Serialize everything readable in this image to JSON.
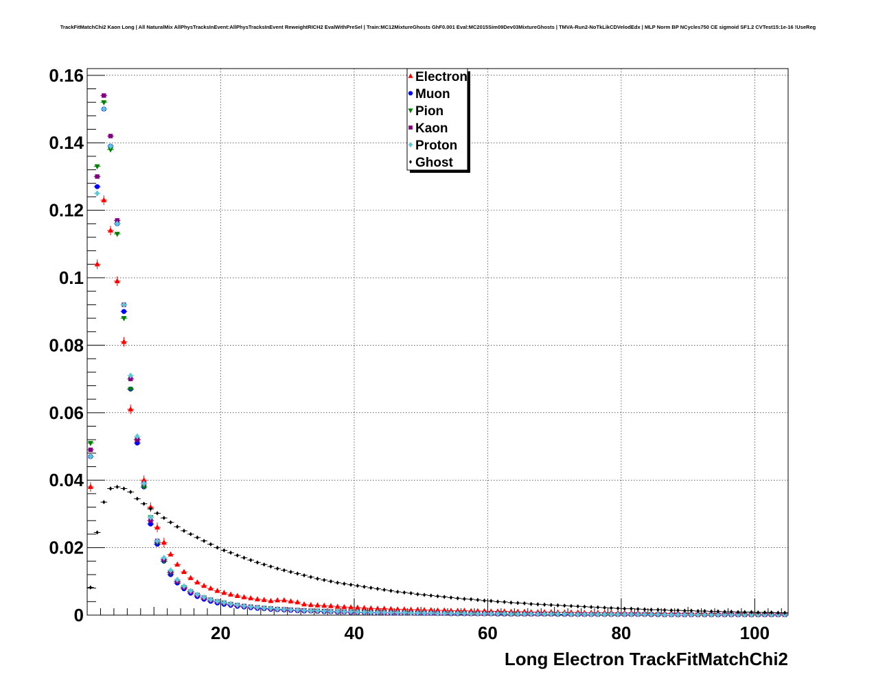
{
  "title": "TrackFitMatchChi2 Kaon Long | All NaturalMix AllPhysTracksInEvent:AllPhysTracksInEvent ReweightRICH2 EvalWithPreSel | Train:MC12MixtureGhosts GhF0.001 Eval:MC2015Sim09Dev03MixtureGhosts | TMVA-Run2-NoTkLikCDVelodEdx | MLP Norm BP NCycles750 CE sigmoid SF1.2 CVTest15:1e-16 !UseReg",
  "chart_data": {
    "type": "scatter",
    "title": "TrackFitMatchChi2 Kaon Long | All NaturalMix AllPhysTracksInEvent:AllPhysTracksInEvent ReweightRICH2 EvalWithPreSel | Train:MC12MixtureGhosts GhF0.001 Eval:MC2015Sim09Dev03MixtureGhosts | TMVA-Run2-NoTkLikCDVelodEdx | MLP Norm BP NCycles750 CE sigmoid SF1.2 CVTest15:1e-16 !UseReg",
    "xlabel": "Long Electron TrackFitMatchChi2",
    "ylabel": "",
    "xlim": [
      0,
      105
    ],
    "ylim": [
      0,
      0.162
    ],
    "x_ticks": [
      20,
      40,
      60,
      80,
      100
    ],
    "y_ticks": [
      0,
      0.02,
      0.04,
      0.06,
      0.08,
      0.1,
      0.12,
      0.14,
      0.16
    ],
    "y_tick_labels": [
      "0",
      "0.02",
      "0.04",
      "0.06",
      "0.08",
      "0.1",
      "0.12",
      "0.14",
      "0.16"
    ],
    "grid": true,
    "legend_position": "top-center",
    "bin_width": 1,
    "bin_centers": [
      0.5,
      1.5,
      2.5,
      3.5,
      4.5,
      5.5,
      6.5,
      7.5,
      8.5,
      9.5,
      10.5,
      11.5,
      12.5,
      13.5,
      14.5,
      15.5,
      16.5,
      17.5,
      18.5,
      19.5,
      20.5,
      21.5,
      22.5,
      23.5,
      24.5,
      25.5,
      26.5,
      27.5,
      28.5,
      29.5,
      30.5,
      31.5,
      32.5,
      33.5,
      34.5,
      35.5,
      36.5,
      37.5,
      38.5,
      39.5,
      40.5,
      41.5,
      42.5,
      43.5,
      44.5,
      45.5,
      46.5,
      47.5,
      48.5,
      49.5,
      50.5,
      51.5,
      52.5,
      53.5,
      54.5,
      55.5,
      56.5,
      57.5,
      58.5,
      59.5,
      60.5,
      61.5,
      62.5,
      63.5,
      64.5,
      65.5,
      66.5,
      67.5,
      68.5,
      69.5,
      70.5,
      71.5,
      72.5,
      73.5,
      74.5,
      75.5,
      76.5,
      77.5,
      78.5,
      79.5,
      80.5,
      81.5,
      82.5,
      83.5,
      84.5,
      85.5,
      86.5,
      87.5,
      88.5,
      89.5,
      90.5,
      91.5,
      92.5,
      93.5,
      94.5,
      95.5,
      96.5,
      97.5,
      98.5,
      99.5,
      100.5,
      101.5,
      102.5,
      103.5,
      104.5
    ],
    "series": [
      {
        "name": "Electron",
        "color": "#ff0000",
        "marker": "triangle-up",
        "values": [
          0.038,
          0.104,
          0.123,
          0.114,
          0.099,
          0.081,
          0.061,
          0.052,
          0.04,
          0.032,
          0.026,
          0.0215,
          0.018,
          0.015,
          0.0128,
          0.011,
          0.0097,
          0.0087,
          0.0079,
          0.0072,
          0.0066,
          0.0061,
          0.0057,
          0.0053,
          0.005,
          0.0047,
          0.0045,
          0.0042,
          0.0044,
          0.0044,
          0.0041,
          0.0038,
          0.0032,
          0.003,
          0.0029,
          0.0028,
          0.0027,
          0.0025,
          0.0024,
          0.0023,
          0.0022,
          0.0021,
          0.002,
          0.0019,
          0.0019,
          0.0018,
          0.0017,
          0.0017,
          0.0016,
          0.0016,
          0.0015,
          0.0015,
          0.0014,
          0.0014,
          0.0013,
          0.0013,
          0.0013,
          0.0012,
          0.0012,
          0.0012,
          0.0011,
          0.0011,
          0.0011,
          0.001,
          0.001,
          0.001,
          0.0009,
          0.0009,
          0.0009,
          0.0009,
          0.0008,
          0.0008,
          0.0008,
          0.0008,
          0.0007,
          0.0007,
          0.0007,
          0.0007,
          0.0007,
          0.0006,
          0.0006,
          0.0006,
          0.0006,
          0.0006,
          0.0005,
          0.0005,
          0.0005,
          0.0005,
          0.0005,
          0.0005,
          0.0004,
          0.0004,
          0.0004,
          0.0004,
          0.0004,
          0.0004,
          0.0004,
          0.0003,
          0.0003,
          0.0003,
          0.0003,
          0.0003,
          0.0003,
          0.0003,
          0.0003
        ]
      },
      {
        "name": "Muon",
        "color": "#0000ff",
        "marker": "circle",
        "values": [
          0.047,
          0.127,
          0.15,
          0.139,
          0.116,
          0.09,
          0.067,
          0.051,
          0.038,
          0.027,
          0.021,
          0.016,
          0.012,
          0.0095,
          0.0078,
          0.0065,
          0.0055,
          0.0047,
          0.0041,
          0.0036,
          0.0032,
          0.0029,
          0.0026,
          0.0024,
          0.0022,
          0.002,
          0.0019,
          0.0017,
          0.0016,
          0.0015,
          0.0014,
          0.0013,
          0.0012,
          0.0012,
          0.0011,
          0.001,
          0.001,
          0.0009,
          0.0009,
          0.0008,
          0.0008,
          0.0008,
          0.0007,
          0.0007,
          0.0007,
          0.0006,
          0.0006,
          0.0006,
          0.0006,
          0.0005,
          0.0005,
          0.0005,
          0.0005,
          0.0005,
          0.0004,
          0.0004,
          0.0004,
          0.0004,
          0.0004,
          0.0004,
          0.0004,
          0.0003,
          0.0003,
          0.0003,
          0.0003,
          0.0003,
          0.0003,
          0.0003,
          0.0003,
          0.0003,
          0.0002,
          0.0002,
          0.0002,
          0.0002,
          0.0002,
          0.0002,
          0.0002,
          0.0002,
          0.0002,
          0.0002,
          0.0002,
          0.0002,
          0.0002,
          0.0002,
          0.0001,
          0.0001,
          0.0001,
          0.0001,
          0.0001,
          0.0001,
          0.0001,
          0.0001,
          0.0001,
          0.0001,
          0.0001,
          0.0001,
          0.0001,
          0.0001,
          0.0001,
          0.0001,
          0.0001,
          0.0001,
          0.0001,
          0.0001,
          0.0001
        ]
      },
      {
        "name": "Pion",
        "color": "#008000",
        "marker": "triangle-down",
        "values": [
          0.051,
          0.133,
          0.152,
          0.138,
          0.113,
          0.088,
          0.067,
          0.052,
          0.038,
          0.029,
          0.0215,
          0.016,
          0.0125,
          0.01,
          0.0083,
          0.007,
          0.006,
          0.0052,
          0.0046,
          0.0041,
          0.0037,
          0.0033,
          0.003,
          0.0027,
          0.0025,
          0.0023,
          0.0021,
          0.002,
          0.0018,
          0.0017,
          0.0016,
          0.0015,
          0.0014,
          0.0013,
          0.0013,
          0.0012,
          0.0011,
          0.0011,
          0.001,
          0.001,
          0.0009,
          0.0009,
          0.0008,
          0.0008,
          0.0008,
          0.0007,
          0.0007,
          0.0007,
          0.0006,
          0.0006,
          0.0006,
          0.0006,
          0.0005,
          0.0005,
          0.0005,
          0.0005,
          0.0005,
          0.0004,
          0.0004,
          0.0004,
          0.0004,
          0.0004,
          0.0004,
          0.0003,
          0.0003,
          0.0003,
          0.0003,
          0.0003,
          0.0003,
          0.0003,
          0.0003,
          0.0003,
          0.0002,
          0.0002,
          0.0002,
          0.0002,
          0.0002,
          0.0002,
          0.0002,
          0.0002,
          0.0002,
          0.0002,
          0.0002,
          0.0002,
          0.0002,
          0.0002,
          0.0001,
          0.0001,
          0.0001,
          0.0001,
          0.0001,
          0.0001,
          0.0001,
          0.0001,
          0.0001,
          0.0001,
          0.0001,
          0.0001,
          0.0001,
          0.0001,
          0.0001,
          0.0001,
          0.0001,
          0.0001,
          0.0001
        ]
      },
      {
        "name": "Kaon",
        "color": "#800080",
        "marker": "square",
        "values": [
          0.049,
          0.13,
          0.154,
          0.142,
          0.117,
          0.092,
          0.07,
          0.052,
          0.039,
          0.028,
          0.022,
          0.0165,
          0.0128,
          0.01,
          0.0082,
          0.0069,
          0.0059,
          0.0051,
          0.0045,
          0.004,
          0.0036,
          0.0032,
          0.0029,
          0.0027,
          0.0025,
          0.0023,
          0.0021,
          0.0019,
          0.0018,
          0.0017,
          0.0016,
          0.0015,
          0.0014,
          0.0013,
          0.0012,
          0.0012,
          0.0011,
          0.001,
          0.001,
          0.0009,
          0.0009,
          0.0009,
          0.0008,
          0.0008,
          0.0007,
          0.0007,
          0.0007,
          0.0007,
          0.0006,
          0.0006,
          0.0006,
          0.0006,
          0.0005,
          0.0005,
          0.0005,
          0.0005,
          0.0005,
          0.0004,
          0.0004,
          0.0004,
          0.0004,
          0.0004,
          0.0004,
          0.0003,
          0.0003,
          0.0003,
          0.0003,
          0.0003,
          0.0003,
          0.0003,
          0.0003,
          0.0003,
          0.0002,
          0.0002,
          0.0002,
          0.0002,
          0.0002,
          0.0002,
          0.0002,
          0.0002,
          0.0002,
          0.0002,
          0.0002,
          0.0002,
          0.0002,
          0.0002,
          0.0001,
          0.0001,
          0.0001,
          0.0001,
          0.0001,
          0.0001,
          0.0001,
          0.0001,
          0.0001,
          0.0001,
          0.0001,
          0.0001,
          0.0001,
          0.0001,
          0.0001,
          0.0001,
          0.0001,
          0.0001,
          0.0001
        ]
      },
      {
        "name": "Proton",
        "color": "#5fc8d8",
        "marker": "diamond",
        "values": [
          0.047,
          0.125,
          0.15,
          0.139,
          0.116,
          0.092,
          0.071,
          0.053,
          0.039,
          0.029,
          0.022,
          0.017,
          0.0133,
          0.0105,
          0.0086,
          0.0072,
          0.0061,
          0.0053,
          0.0046,
          0.0041,
          0.0037,
          0.0033,
          0.003,
          0.0027,
          0.0025,
          0.0023,
          0.0021,
          0.002,
          0.0018,
          0.0017,
          0.0016,
          0.0015,
          0.0014,
          0.0013,
          0.0013,
          0.0012,
          0.0011,
          0.0011,
          0.001,
          0.001,
          0.0009,
          0.0009,
          0.0008,
          0.0008,
          0.0008,
          0.0007,
          0.0007,
          0.0007,
          0.0006,
          0.0006,
          0.0006,
          0.0006,
          0.0005,
          0.0005,
          0.0005,
          0.0005,
          0.0005,
          0.0004,
          0.0004,
          0.0004,
          0.0004,
          0.0004,
          0.0004,
          0.0003,
          0.0003,
          0.0003,
          0.0003,
          0.0003,
          0.0003,
          0.0003,
          0.0003,
          0.0003,
          0.0002,
          0.0002,
          0.0002,
          0.0002,
          0.0002,
          0.0002,
          0.0002,
          0.0002,
          0.0002,
          0.0002,
          0.0002,
          0.0002,
          0.0002,
          0.0002,
          0.0001,
          0.0001,
          0.0001,
          0.0001,
          0.0001,
          0.0001,
          0.0001,
          0.0001,
          0.0001,
          0.0001,
          0.0001,
          0.0001,
          0.0001,
          0.0001,
          0.0001,
          0.0001,
          0.0001,
          0.0001,
          0.0001
        ]
      },
      {
        "name": "Ghost",
        "color": "#000000",
        "marker": "diamond-small",
        "values": [
          0.0082,
          0.0245,
          0.0335,
          0.0375,
          0.038,
          0.0375,
          0.0365,
          0.0345,
          0.033,
          0.0315,
          0.0302,
          0.0288,
          0.0275,
          0.0262,
          0.025,
          0.024,
          0.023,
          0.022,
          0.021,
          0.02,
          0.0192,
          0.0185,
          0.0177,
          0.017,
          0.0163,
          0.0156,
          0.015,
          0.0144,
          0.0138,
          0.0133,
          0.0128,
          0.0123,
          0.0118,
          0.0113,
          0.0108,
          0.0104,
          0.01,
          0.0096,
          0.0093,
          0.009,
          0.0087,
          0.0084,
          0.0081,
          0.0078,
          0.0075,
          0.0072,
          0.0069,
          0.0067,
          0.0065,
          0.0062,
          0.006,
          0.0058,
          0.0056,
          0.0054,
          0.0052,
          0.005,
          0.0048,
          0.0047,
          0.0045,
          0.0043,
          0.0042,
          0.004,
          0.0039,
          0.0037,
          0.0036,
          0.0035,
          0.0033,
          0.0032,
          0.0031,
          0.003,
          0.0029,
          0.0028,
          0.0027,
          0.0026,
          0.0025,
          0.0024,
          0.0023,
          0.0022,
          0.0021,
          0.002,
          0.0019,
          0.0019,
          0.0018,
          0.0017,
          0.0016,
          0.0016,
          0.0015,
          0.0014,
          0.0014,
          0.0013,
          0.0013,
          0.0012,
          0.0012,
          0.0011,
          0.0011,
          0.001,
          0.001,
          0.0009,
          0.0009,
          0.0009,
          0.0008,
          0.0008,
          0.0008,
          0.0007,
          0.0007
        ]
      }
    ]
  }
}
